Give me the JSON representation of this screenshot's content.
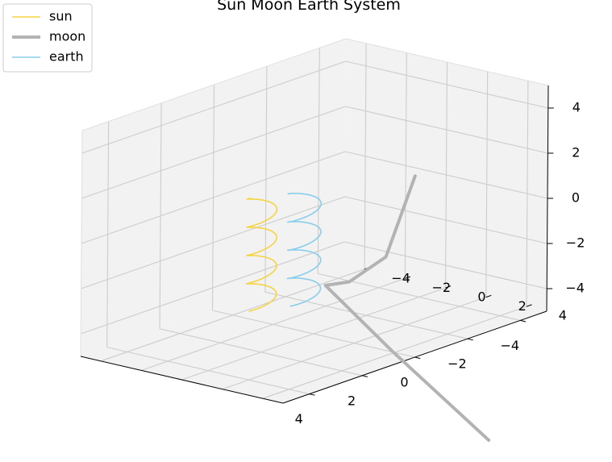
{
  "chart_data": {
    "type": "line",
    "projection": "3d",
    "title": "Sun Moon Earth System",
    "xlabel": "",
    "ylabel": "",
    "zlabel": "",
    "xlim": [
      -5,
      5
    ],
    "ylim": [
      -5,
      5
    ],
    "zlim": [
      -5,
      5
    ],
    "x_ticks": [
      -4,
      -2,
      0,
      2,
      4
    ],
    "y_ticks": [
      -4,
      -2,
      0,
      2,
      4
    ],
    "z_ticks": [
      -4,
      -2,
      0,
      2,
      4
    ],
    "x_tick_labels": [
      "−4",
      "−2",
      "0",
      "2",
      "4"
    ],
    "y_tick_labels": [
      "−4",
      "−2",
      "0",
      "2",
      "4"
    ],
    "z_tick_labels": [
      "−4",
      "−2",
      "0",
      "2",
      "4"
    ],
    "grid": true,
    "legend_position": "top-left",
    "series": [
      {
        "name": "sun",
        "color": "#f5d442",
        "shape": "helix",
        "center_x": 2.0,
        "center_y": 0.0,
        "radius": 0.45,
        "z_range": [
          -3.0,
          2.0
        ],
        "turns": 4
      },
      {
        "name": "moon",
        "color": "#b3b3b3",
        "shape": "curve",
        "points": [
          [
            -1.5,
            3.0,
            2.0
          ],
          [
            -0.8,
            2.5,
            -1.4
          ],
          [
            0.2,
            2.0,
            -2.2
          ],
          [
            0.8,
            1.6,
            -2.2
          ],
          [
            -3.0,
            0.0,
            -7.0
          ],
          [
            -9.0,
            -3.0,
            -14.0
          ]
        ]
      },
      {
        "name": "earth",
        "color": "#87ceeb",
        "shape": "helix",
        "center_x": 1.0,
        "center_y": 0.8,
        "radius": 0.5,
        "z_range": [
          -3.0,
          2.0
        ],
        "turns": 4
      }
    ]
  }
}
